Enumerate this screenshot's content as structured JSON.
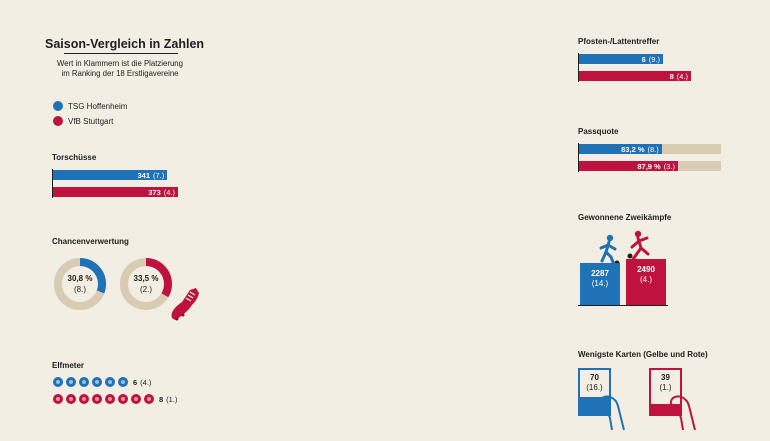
{
  "header": {
    "title": "Saison-Vergleich in Zahlen",
    "subtitle_line1": "Wert in Klammern ist die Platzierung",
    "subtitle_line2": "im Ranking der 18 Erstligavereine"
  },
  "legend": [
    {
      "name": "TSG Hoffenheim",
      "color": "#1f72b6"
    },
    {
      "name": "VfB Stuttgart",
      "color": "#c0123f"
    }
  ],
  "colors": {
    "hoffenheim": "#1f72b6",
    "stuttgart": "#c0123f",
    "track": "#d8ccb2",
    "background": "#f3eee3"
  },
  "chart_data": [
    {
      "type": "bar",
      "title": "Torschüsse",
      "series": [
        {
          "name": "TSG Hoffenheim",
          "value": 341,
          "label": "341",
          "rank": "(7.)"
        },
        {
          "name": "VfB Stuttgart",
          "value": 373,
          "label": "373",
          "rank": "(4.)"
        }
      ]
    },
    {
      "type": "pie",
      "title": "Chancenverwertung",
      "series": [
        {
          "name": "TSG Hoffenheim",
          "value": 30.8,
          "label": "30,8 %",
          "rank": "(8.)"
        },
        {
          "name": "VfB Stuttgart",
          "value": 33.5,
          "label": "33,5 %",
          "rank": "(2.)"
        }
      ]
    },
    {
      "type": "bar",
      "title": "Elfmeter",
      "series": [
        {
          "name": "TSG Hoffenheim",
          "value": 6,
          "label": "6",
          "rank": "(4.)"
        },
        {
          "name": "VfB Stuttgart",
          "value": 8,
          "label": "8",
          "rank": "(1.)"
        }
      ]
    },
    {
      "type": "bar",
      "title": "Pfosten-/Lattentreffer",
      "series": [
        {
          "name": "TSG Hoffenheim",
          "value": 6,
          "label": "6",
          "rank": "(9.)"
        },
        {
          "name": "VfB Stuttgart",
          "value": 8,
          "label": "8",
          "rank": "(4.)"
        }
      ]
    },
    {
      "type": "bar",
      "title": "Passquote",
      "series": [
        {
          "name": "TSG Hoffenheim",
          "value": 83.2,
          "label": "83,2 %",
          "rank": "(8.)"
        },
        {
          "name": "VfB Stuttgart",
          "value": 87.9,
          "label": "87,9 %",
          "rank": "(3.)"
        }
      ]
    },
    {
      "type": "bar",
      "title": "Gewonnene Zweikämpfe",
      "series": [
        {
          "name": "TSG Hoffenheim",
          "value": 2287,
          "label": "2287",
          "rank": "(14.)"
        },
        {
          "name": "VfB Stuttgart",
          "value": 2490,
          "label": "2490",
          "rank": "(4.)"
        }
      ]
    },
    {
      "type": "bar",
      "title": "Wenigste Karten (Gelbe und Rote)",
      "series": [
        {
          "name": "TSG Hoffenheim",
          "value": 70,
          "label": "70",
          "rank": "(16.)"
        },
        {
          "name": "VfB Stuttgart",
          "value": 39,
          "label": "39",
          "rank": "(1.)"
        }
      ]
    }
  ]
}
